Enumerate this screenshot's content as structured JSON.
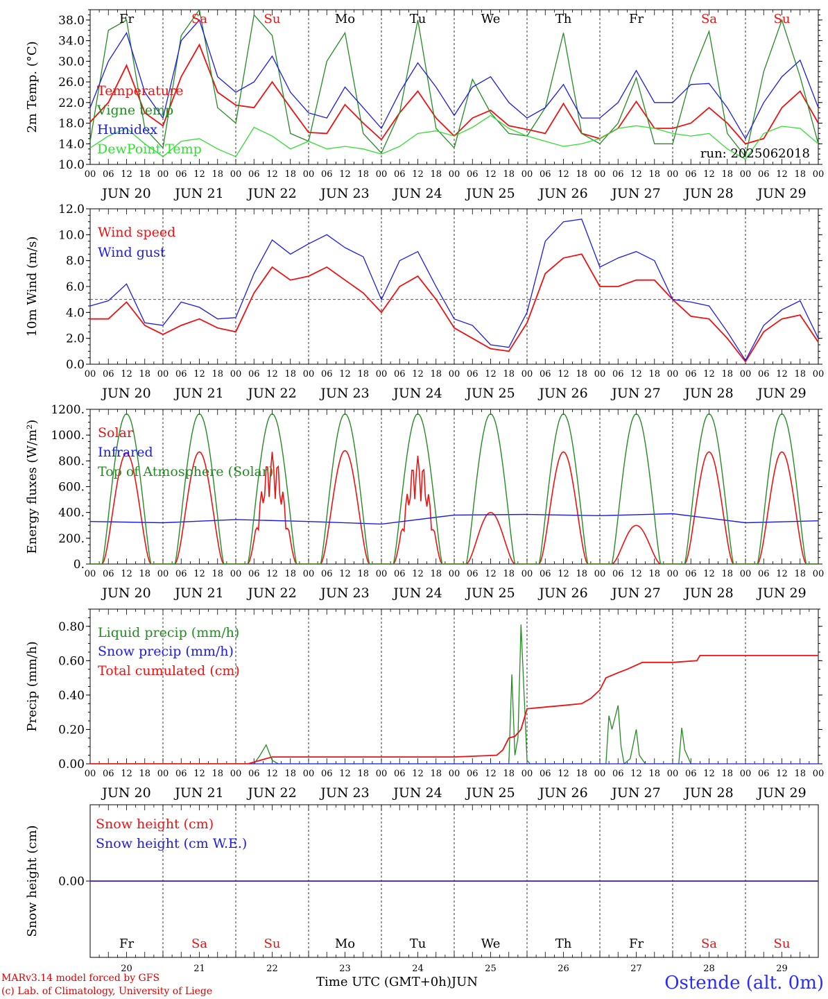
{
  "chart_data": [
    {
      "type": "line",
      "ylabel": "2m Temp. (°C)",
      "ylim": [
        10,
        40
      ],
      "ytick_labels": [
        "10.0",
        "14.0",
        "18.0",
        "22.0",
        "26.0",
        "30.0",
        "34.0",
        "38.0"
      ],
      "run_label": "run: 2025062018",
      "series": [
        {
          "name": "Temperature",
          "color": "#ee1111",
          "x": [
            0,
            6,
            12,
            18,
            24,
            30,
            36,
            42,
            48,
            54,
            60,
            66,
            72,
            78,
            84,
            90,
            96,
            102,
            108,
            114,
            120,
            126,
            132,
            138,
            144,
            150,
            156,
            162,
            168,
            174,
            180,
            186,
            192,
            198,
            204,
            210,
            216,
            222,
            228,
            234,
            240
          ],
          "values": [
            18.2,
            22,
            29.2,
            20,
            17.5,
            27,
            33.2,
            24,
            21.5,
            21,
            26,
            21,
            16.2,
            16,
            21.6,
            18,
            14.8,
            20,
            24.2,
            19,
            15.5,
            19,
            20.5,
            17.5,
            16.8,
            16,
            21.8,
            16,
            15,
            17,
            22.2,
            17,
            17,
            18,
            21,
            18,
            14,
            15,
            21,
            24.2,
            18
          ]
        },
        {
          "name": "Vigne temp",
          "color": "#228b22",
          "x": [
            0,
            6,
            12,
            18,
            24,
            30,
            36,
            42,
            48,
            54,
            60,
            66,
            72,
            78,
            84,
            90,
            96,
            102,
            108,
            114,
            120,
            126,
            132,
            138,
            144,
            150,
            156,
            162,
            168,
            174,
            180,
            186,
            192,
            198,
            204,
            210,
            216,
            222,
            228,
            234,
            240
          ],
          "values": [
            14.5,
            36,
            38,
            17,
            13.2,
            35,
            40,
            21,
            18,
            39,
            35,
            16,
            14.5,
            30,
            35.5,
            16,
            12.2,
            20,
            38,
            17,
            13.2,
            26.5,
            20,
            16,
            15.5,
            21,
            35.5,
            16,
            14,
            18,
            26.8,
            14,
            14,
            27,
            35.8,
            16,
            11.5,
            28,
            38,
            27,
            14
          ]
        },
        {
          "name": "Humidex",
          "color": "#1a1aee",
          "x": [
            0,
            6,
            12,
            18,
            24,
            30,
            36,
            42,
            48,
            54,
            60,
            66,
            72,
            78,
            84,
            90,
            96,
            102,
            108,
            114,
            120,
            126,
            132,
            138,
            144,
            150,
            156,
            162,
            168,
            174,
            180,
            186,
            192,
            198,
            204,
            210,
            216,
            222,
            228,
            234,
            240
          ],
          "values": [
            21,
            30,
            35.5,
            24,
            19,
            34,
            38,
            27,
            24,
            26,
            31,
            24,
            20,
            19,
            25,
            21,
            17,
            24,
            29.7,
            25,
            19.5,
            25,
            27,
            22,
            19,
            21,
            25.5,
            19,
            19,
            22,
            28.2,
            22,
            22,
            25.5,
            25.7,
            21,
            15,
            22,
            27,
            30.2,
            21
          ]
        },
        {
          "name": "DewPoint Temp",
          "color": "#33dd33",
          "x": [
            0,
            6,
            12,
            18,
            24,
            30,
            36,
            42,
            48,
            54,
            60,
            66,
            72,
            78,
            84,
            90,
            96,
            102,
            108,
            114,
            120,
            126,
            132,
            138,
            144,
            150,
            156,
            162,
            168,
            174,
            180,
            186,
            192,
            198,
            204,
            210,
            216,
            222,
            228,
            234,
            240
          ],
          "values": [
            13.2,
            15.5,
            17,
            14,
            11.5,
            14.5,
            15,
            13,
            11.5,
            17.2,
            15.5,
            13,
            14.5,
            13,
            13.5,
            13,
            12,
            13.5,
            16,
            16.5,
            15.5,
            17.2,
            19.5,
            17,
            15.5,
            14.5,
            13.5,
            14,
            15,
            17,
            17.5,
            17,
            16,
            15.5,
            16,
            13,
            11,
            16,
            17.4,
            17,
            14
          ]
        }
      ]
    },
    {
      "type": "line",
      "ylabel": "10m Wind (m/s)",
      "ylim": [
        0,
        12
      ],
      "ytick_labels": [
        "0.0",
        "2.0",
        "4.0",
        "6.0",
        "8.0",
        "10.0",
        "12.0"
      ],
      "reference_line": 5,
      "series": [
        {
          "name": "Wind speed",
          "color": "#ee1111",
          "x": [
            0,
            6,
            12,
            18,
            24,
            30,
            36,
            42,
            48,
            54,
            60,
            66,
            72,
            78,
            84,
            90,
            96,
            102,
            108,
            114,
            120,
            126,
            132,
            138,
            144,
            150,
            156,
            162,
            168,
            174,
            180,
            186,
            192,
            198,
            204,
            210,
            216,
            222,
            228,
            234,
            240
          ],
          "values": [
            3.5,
            3.5,
            4.8,
            3,
            2.3,
            3,
            3.5,
            2.8,
            2.5,
            5.5,
            7.5,
            6.5,
            6.8,
            7.5,
            6.5,
            5.5,
            4,
            6,
            6.8,
            5,
            2.8,
            2,
            1.2,
            1,
            3.2,
            7,
            8.2,
            8.5,
            6,
            6,
            6.5,
            6.5,
            5,
            3.7,
            3.5,
            2,
            0.2,
            2.5,
            3.5,
            3.8,
            1.7
          ]
        },
        {
          "name": "Wind gust",
          "color": "#1a1aee",
          "x": [
            0,
            6,
            12,
            18,
            24,
            30,
            36,
            42,
            48,
            54,
            60,
            66,
            72,
            78,
            84,
            90,
            96,
            102,
            108,
            114,
            120,
            126,
            132,
            138,
            144,
            150,
            156,
            162,
            168,
            174,
            180,
            186,
            192,
            198,
            204,
            210,
            216,
            222,
            228,
            234,
            240
          ],
          "values": [
            4.5,
            4.9,
            6.2,
            3.2,
            3,
            4.8,
            4.4,
            3.5,
            3.6,
            7,
            9.6,
            8.5,
            9.3,
            10,
            9,
            8.3,
            5,
            8,
            8.7,
            6,
            3.5,
            3,
            1.5,
            1.3,
            4,
            9.5,
            11,
            11.2,
            7.5,
            8.2,
            8.7,
            8,
            5,
            4.8,
            4.5,
            2.5,
            0.3,
            3,
            4.2,
            4.9,
            2
          ]
        }
      ]
    },
    {
      "type": "line",
      "ylabel": "Energy fluxes (W/m²)",
      "ylim": [
        0,
        1200
      ],
      "ytick_labels": [
        "0.",
        "200.",
        "400.",
        "600.",
        "800.",
        "1000.",
        "1200."
      ],
      "series": [
        {
          "name": "Solar",
          "color": "#ee1111",
          "peaks_by_day": [
            860,
            870,
            870,
            880,
            840,
            400,
            870,
            300,
            870,
            870
          ]
        },
        {
          "name": "Infrared",
          "color": "#1a1aee",
          "x": [
            0,
            24,
            48,
            72,
            96,
            120,
            144,
            168,
            192,
            216,
            240
          ],
          "values": [
            330,
            320,
            345,
            330,
            310,
            380,
            385,
            375,
            390,
            320,
            335
          ]
        },
        {
          "name": "Top of Atmosphere (Solar)",
          "color": "#228b22",
          "peaks_by_day": [
            1165,
            1165,
            1165,
            1165,
            1165,
            1165,
            1165,
            1165,
            1165,
            1165
          ]
        }
      ]
    },
    {
      "type": "line",
      "ylabel": "Precip (mm/h)",
      "ylim": [
        0,
        0.9
      ],
      "ytick_labels": [
        "0.00",
        "0.20",
        "0.40",
        "0.60",
        "0.80"
      ],
      "series": [
        {
          "name": "Liquid precip (mm/h)",
          "color": "#228b22",
          "x": [
            0,
            50,
            54,
            56,
            58,
            60,
            62,
            144,
            138,
            139,
            140,
            141,
            142,
            144,
            145,
            146,
            150,
            168,
            170,
            171,
            172,
            174,
            175,
            176,
            178,
            180,
            181,
            183,
            192,
            194,
            195,
            196,
            198,
            200
          ],
          "values": [
            0,
            0,
            0,
            0.05,
            0.11,
            0.02,
            0,
            0,
            0,
            0.52,
            0.05,
            0.15,
            0.81,
            0.02,
            0,
            0,
            0,
            0,
            0,
            0.28,
            0.2,
            0.34,
            0.1,
            0,
            0.03,
            0.2,
            0.05,
            0,
            0,
            0,
            0.21,
            0.08,
            0,
            0
          ]
        },
        {
          "name": "Snow precip (mm/h)",
          "color": "#1a1aee",
          "x": [
            0,
            240
          ],
          "values": [
            0,
            0
          ]
        },
        {
          "name": "Total cumulated (cm)",
          "color": "#ee1111",
          "x": [
            0,
            52,
            60,
            72,
            96,
            120,
            134,
            136,
            138,
            140,
            142,
            144,
            150,
            156,
            162,
            165,
            168,
            170,
            174,
            177,
            182,
            186,
            192,
            200,
            201,
            204,
            240
          ],
          "values": [
            0,
            0,
            0.04,
            0.04,
            0.04,
            0.04,
            0.05,
            0.08,
            0.15,
            0.16,
            0.2,
            0.32,
            0.33,
            0.34,
            0.35,
            0.38,
            0.43,
            0.5,
            0.53,
            0.55,
            0.59,
            0.59,
            0.59,
            0.6,
            0.63,
            0.63,
            0.63
          ]
        }
      ]
    },
    {
      "type": "line",
      "ylabel": "Snow height (cm)",
      "ytick_labels": [
        "0.00"
      ],
      "series": [
        {
          "name": "Snow height (cm)",
          "color": "#ee1111",
          "x": [
            0,
            240
          ],
          "values": [
            0,
            0
          ]
        },
        {
          "name": "Snow height (cm W.E.)",
          "color": "#1a1aee",
          "x": [
            0,
            240
          ],
          "values": [
            0,
            0
          ]
        }
      ]
    }
  ],
  "x_axis": {
    "hour_ticks": [
      "00",
      "06",
      "12",
      "18"
    ],
    "final_tick": "00",
    "dates": [
      "JUN 20",
      "JUN 21",
      "JUN 22",
      "JUN 23",
      "JUN 24",
      "JUN 25",
      "JUN 26",
      "JUN 27",
      "JUN 28",
      "JUN 29"
    ],
    "weekdays": [
      {
        "label": "Fr",
        "color": "#000000"
      },
      {
        "label": "Sa",
        "color": "#ee1111"
      },
      {
        "label": "Su",
        "color": "#ee1111"
      },
      {
        "label": "Mo",
        "color": "#000000"
      },
      {
        "label": "Tu",
        "color": "#000000"
      },
      {
        "label": "We",
        "color": "#000000"
      },
      {
        "label": "Th",
        "color": "#000000"
      },
      {
        "label": "Fr",
        "color": "#000000"
      },
      {
        "label": "Sa",
        "color": "#ee1111"
      },
      {
        "label": "Su",
        "color": "#ee1111"
      }
    ],
    "day_numbers": [
      "20",
      "21",
      "22",
      "23",
      "24",
      "25",
      "26",
      "27",
      "28",
      "29"
    ]
  },
  "footer": {
    "credit1": "MARv3.14 model forced by GFS",
    "credit2": "(c) Lab. of Climatology, University of Liege",
    "xlabel": "Time UTC (GMT+0h)",
    "month": "JUN",
    "station": "Ostende (alt. 0m)"
  }
}
